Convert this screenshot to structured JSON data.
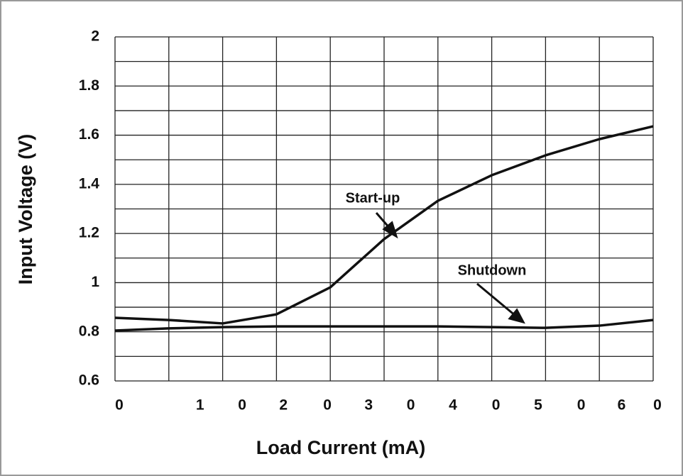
{
  "chart_data": {
    "type": "line",
    "x_label": "Load Current (mA)",
    "y_label": "Input Voltage (V)",
    "xlim": [
      0,
      60
    ],
    "ylim": [
      0.6,
      2
    ],
    "xticks": [
      0,
      {
        "value": 9,
        "label": "1"
      },
      {
        "value": 13.7,
        "label": "0"
      },
      {
        "value": 18.3,
        "label": "2"
      },
      {
        "value": 23.2,
        "label": "0"
      },
      {
        "value": 27.8,
        "label": "3"
      },
      {
        "value": 32.5,
        "label": "0"
      },
      {
        "value": 37.2,
        "label": "4"
      },
      {
        "value": 42,
        "label": "0"
      },
      {
        "value": 46.7,
        "label": "5"
      },
      {
        "value": 51.5,
        "label": "0"
      },
      {
        "value": 56,
        "label": "6"
      },
      {
        "value": 60,
        "label": "0"
      }
    ],
    "yticks": [
      0.6,
      0.8,
      1,
      1.2,
      1.4,
      1.6,
      1.8,
      2
    ],
    "x_grid": [
      0,
      6,
      12,
      18,
      24,
      30,
      36,
      42,
      48,
      54,
      60
    ],
    "y_grid": [
      0.6,
      0.7,
      0.8,
      0.9,
      1,
      1.1,
      1.2,
      1.3,
      1.4,
      1.5,
      1.6,
      1.7,
      1.8,
      1.9,
      2
    ],
    "x": [
      0,
      6,
      12,
      18,
      24,
      30,
      36,
      42,
      48,
      54,
      60
    ],
    "series": [
      {
        "name": "Start-up",
        "color": "#111111",
        "values": [
          0.857,
          0.848,
          0.834,
          0.871,
          0.981,
          1.177,
          1.333,
          1.437,
          1.518,
          1.584,
          1.636
        ]
      },
      {
        "name": "Shutdown",
        "color": "#111111",
        "values": [
          0.805,
          0.814,
          0.819,
          0.822,
          0.822,
          0.822,
          0.822,
          0.819,
          0.816,
          0.825,
          0.848
        ]
      }
    ]
  }
}
